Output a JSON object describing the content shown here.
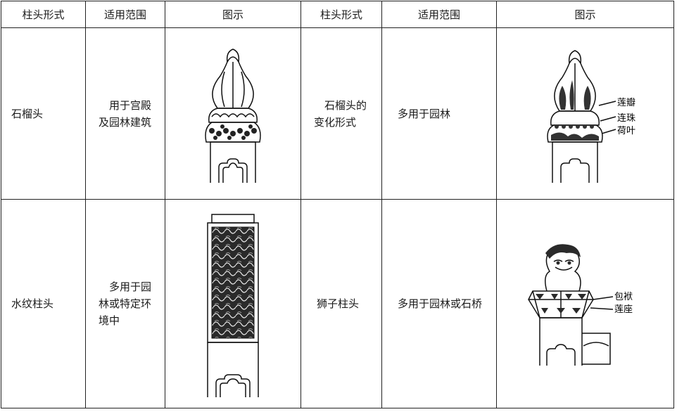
{
  "headers": [
    "柱头形式",
    "适用范围",
    "图示",
    "柱头形式",
    "适用范围",
    "图示"
  ],
  "rows": [
    [
      {
        "name": "石榴头",
        "scope": "用于宫殿及园林建筑",
        "figure": "pomegranate-head-drawing"
      },
      {
        "name": "石榴头的变化形式",
        "scope": "多用于园林",
        "figure": "pomegranate-variant-drawing",
        "labels": [
          "莲瓣",
          "连珠",
          "荷叶"
        ]
      }
    ],
    [
      {
        "name": "水纹柱头",
        "scope": "多用于园林或特定环境中",
        "figure": "water-pattern-head-drawing"
      },
      {
        "name": "狮子柱头",
        "scope": "多用于园林或石桥",
        "figure": "lion-head-drawing",
        "labels": [
          "包袱",
          "莲座"
        ]
      }
    ]
  ]
}
